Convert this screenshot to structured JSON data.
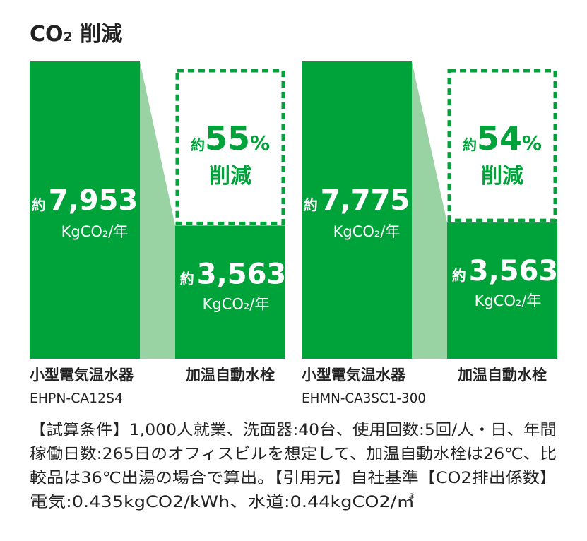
{
  "title": "CO₂ 削減",
  "chart_data": [
    {
      "type": "bar",
      "categories": [
        "小型電気温水器",
        "加温自動水栓"
      ],
      "model": "EHPN-CA12S4",
      "values": [
        7953,
        3563
      ],
      "value_labels": [
        "7,953",
        "3,563"
      ],
      "value_prefix": "約",
      "unit": "KgCO₂/年",
      "ylim": [
        0,
        7953
      ],
      "color": "#00a23a",
      "connector_color": "#99d3a3",
      "reduction": {
        "prefix": "約",
        "value": 55,
        "unit": "%",
        "text": "削減"
      }
    },
    {
      "type": "bar",
      "categories": [
        "小型電気温水器",
        "加温自動水栓"
      ],
      "model": "EHMN-CA3SC1-300",
      "values": [
        7775,
        3563
      ],
      "value_labels": [
        "7,775",
        "3,563"
      ],
      "value_prefix": "約",
      "unit": "KgCO₂/年",
      "ylim": [
        0,
        7775
      ],
      "color": "#00a23a",
      "connector_color": "#99d3a3",
      "reduction": {
        "prefix": "約",
        "value": 54,
        "unit": "%",
        "text": "削減"
      }
    }
  ],
  "note_lines": [
    "【試算条件】1,000人就業、洗面器:40台、使用回数:5回/人・日、年間",
    "稼働日数:265日のオフィスビルを想定して、加温自動水栓は26℃、比",
    "較品は36℃出湯の場合で算出。【引用元】自社基準【CO2排出係数】",
    "電気:0.435kgCO2/kWh、水道:0.44kgCO2/㎥"
  ]
}
